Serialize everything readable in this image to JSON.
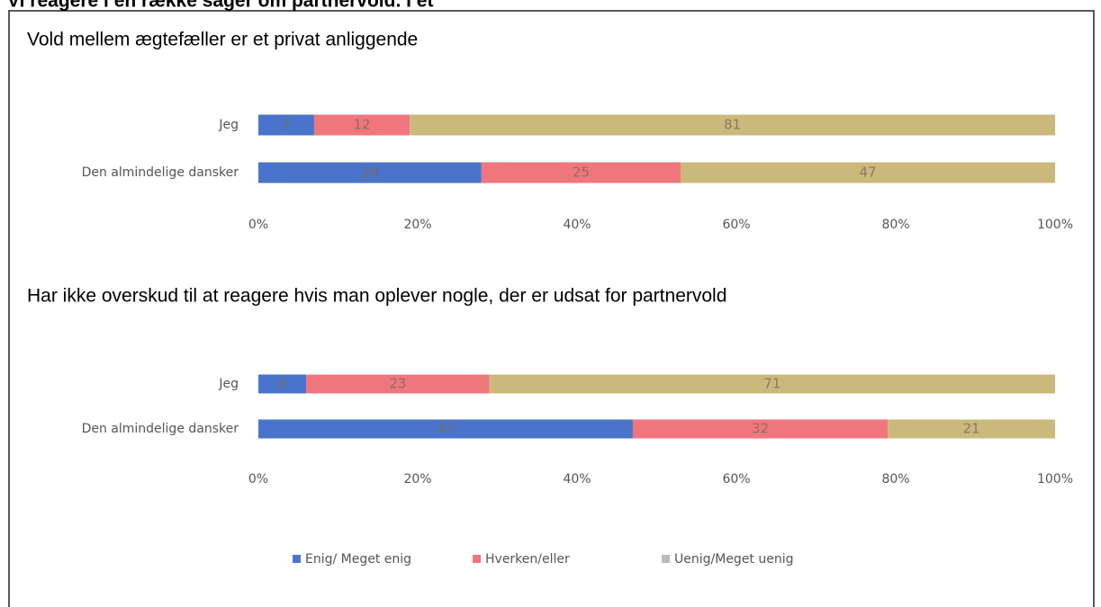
{
  "heading": "Vi reagere i en række sager om partnervold. I et",
  "legend": [
    {
      "name": "Enig/ Meget enig",
      "color": "#4a74c9"
    },
    {
      "name": "Hverken/eller",
      "color": "#f0767d"
    },
    {
      "name": "Uenig/Meget uenig",
      "color": "#cbb97c"
    }
  ],
  "chart_data": [
    {
      "type": "stacked-bar",
      "title": "Vold mellem ægtefæller er et privat anliggende",
      "categories": [
        "Jeg",
        "Den almindelige dansker"
      ],
      "series": [
        {
          "values": [
            7,
            28
          ]
        },
        {
          "values": [
            12,
            25
          ]
        },
        {
          "values": [
            81,
            47
          ]
        }
      ],
      "xlim": [
        0,
        100
      ],
      "xticks": [
        {
          "value": 0,
          "label": "0%"
        },
        {
          "value": 20,
          "label": "20%"
        },
        {
          "value": 40,
          "label": "40%"
        },
        {
          "value": 60,
          "label": "60%"
        },
        {
          "value": 80,
          "label": "80%"
        },
        {
          "value": 100,
          "label": "100%"
        }
      ]
    },
    {
      "type": "stacked-bar",
      "title": "Har ikke overskud til at reagere hvis man oplever nogle, der er udsat for partnervold",
      "categories": [
        "Jeg",
        "Den almindelige dansker"
      ],
      "series": [
        {
          "values": [
            6,
            47
          ]
        },
        {
          "values": [
            23,
            32
          ]
        },
        {
          "values": [
            71,
            21
          ]
        }
      ],
      "xlim": [
        0,
        100
      ],
      "xticks": [
        {
          "value": 0,
          "label": "0%"
        },
        {
          "value": 20,
          "label": "20%"
        },
        {
          "value": 40,
          "label": "40%"
        },
        {
          "value": 60,
          "label": "60%"
        },
        {
          "value": 80,
          "label": "80%"
        },
        {
          "value": 100,
          "label": "100%"
        }
      ]
    }
  ]
}
